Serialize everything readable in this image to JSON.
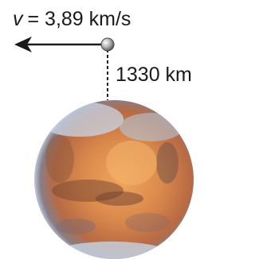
{
  "labels": {
    "velocity_symbol": "v",
    "velocity_value": "= 3,89 km/s",
    "altitude": "1330 km"
  }
}
